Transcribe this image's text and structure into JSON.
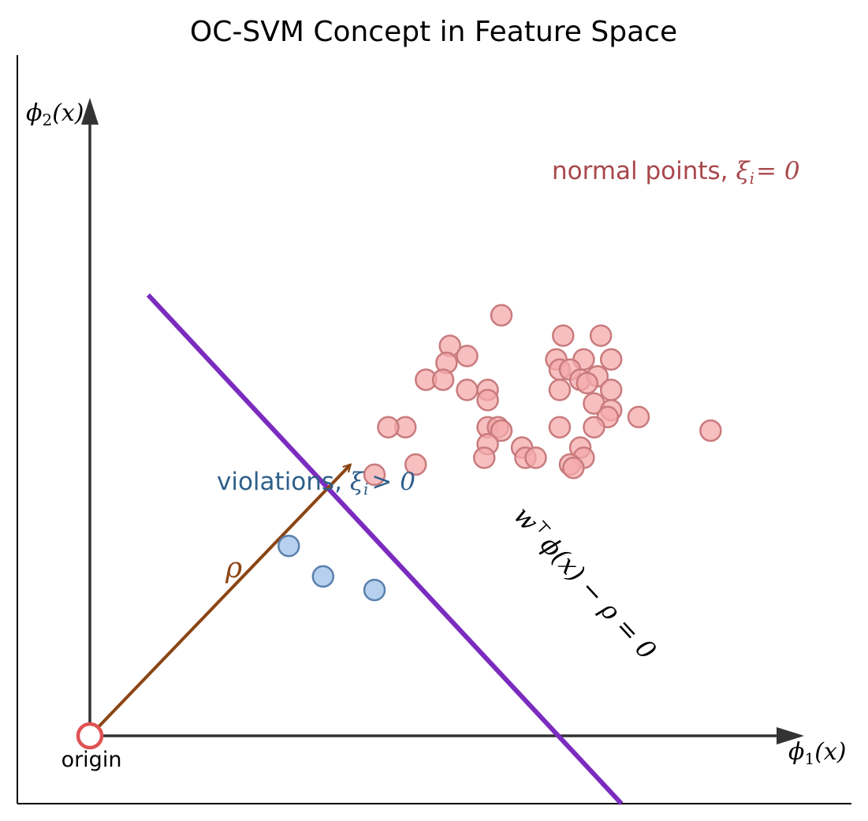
{
  "title": "OC-SVM Concept in Feature Space",
  "labels": {
    "x_axis": "ϕ",
    "x_axis_sub": "1",
    "x_axis_arg": "(x)",
    "y_axis": "ϕ",
    "y_axis_sub": "2",
    "y_axis_arg": "(x)",
    "origin": "origin",
    "rho": "ρ",
    "normal_prefix": "normal points,",
    "normal_math": "ξ",
    "normal_sub": "i",
    "normal_rel": "= 0",
    "violation_prefix": "violations,",
    "violation_math": "ξ",
    "violation_sub": "i",
    "violation_rel": "> 0",
    "hyperplane": "w",
    "hyperplane_sup": "⊤",
    "hyperplane_rest": "ϕ(x) − ρ = 0"
  },
  "colors": {
    "normal_fill": "#f4a9ab",
    "normal_stroke": "#c97b7d",
    "normal_text": "#a8474c",
    "violation_fill": "#a9c8ea",
    "violation_stroke": "#5a80ad",
    "violation_text": "#2e5f8a",
    "hyperplane": "#7b2cbf",
    "rho_arrow": "#8b4513",
    "axis": "#333333",
    "origin": "#e05252"
  },
  "chart_data": {
    "type": "scatter",
    "title": "OC-SVM Concept in Feature Space",
    "xlim": [
      -1,
      10.5
    ],
    "ylim": [
      -1,
      10
    ],
    "series": [
      {
        "name": "normal points, ξi = 0",
        "points": [
          [
            6.0,
            6.2
          ],
          [
            6.9,
            5.9
          ],
          [
            7.45,
            5.9
          ],
          [
            5.25,
            5.75
          ],
          [
            5.5,
            5.6
          ],
          [
            6.8,
            5.55
          ],
          [
            7.2,
            5.55
          ],
          [
            7.6,
            5.55
          ],
          [
            5.2,
            5.5
          ],
          [
            6.85,
            5.4
          ],
          [
            7.0,
            5.4
          ],
          [
            7.15,
            5.25
          ],
          [
            4.9,
            5.25
          ],
          [
            5.15,
            5.25
          ],
          [
            7.4,
            5.3
          ],
          [
            7.25,
            5.2
          ],
          [
            5.5,
            5.1
          ],
          [
            5.8,
            5.1
          ],
          [
            6.85,
            5.1
          ],
          [
            7.6,
            5.1
          ],
          [
            5.8,
            4.95
          ],
          [
            7.35,
            4.9
          ],
          [
            7.6,
            4.8
          ],
          [
            7.55,
            4.7
          ],
          [
            8.0,
            4.7
          ],
          [
            4.6,
            4.55
          ],
          [
            4.35,
            4.55
          ],
          [
            5.8,
            4.55
          ],
          [
            5.95,
            4.55
          ],
          [
            6.0,
            4.5
          ],
          [
            6.85,
            4.55
          ],
          [
            7.35,
            4.55
          ],
          [
            9.05,
            4.5
          ],
          [
            5.8,
            4.3
          ],
          [
            6.3,
            4.25
          ],
          [
            7.15,
            4.25
          ],
          [
            5.75,
            4.1
          ],
          [
            6.35,
            4.1
          ],
          [
            6.5,
            4.1
          ],
          [
            7.2,
            4.1
          ],
          [
            7.0,
            4.0
          ],
          [
            7.05,
            3.95
          ],
          [
            4.15,
            3.85
          ],
          [
            4.75,
            4.0
          ]
        ]
      },
      {
        "name": "violations, ξi > 0",
        "points": [
          [
            2.9,
            2.8
          ],
          [
            3.4,
            2.35
          ],
          [
            4.15,
            2.15
          ]
        ]
      }
    ],
    "hyperplane": {
      "from": [
        0.85,
        6.5
      ],
      "to": [
        7.75,
        -1.0
      ]
    },
    "rho_vector": {
      "from": [
        0,
        0
      ],
      "to": [
        3.8,
        4.0
      ]
    },
    "origin": [
      0,
      0
    ]
  }
}
